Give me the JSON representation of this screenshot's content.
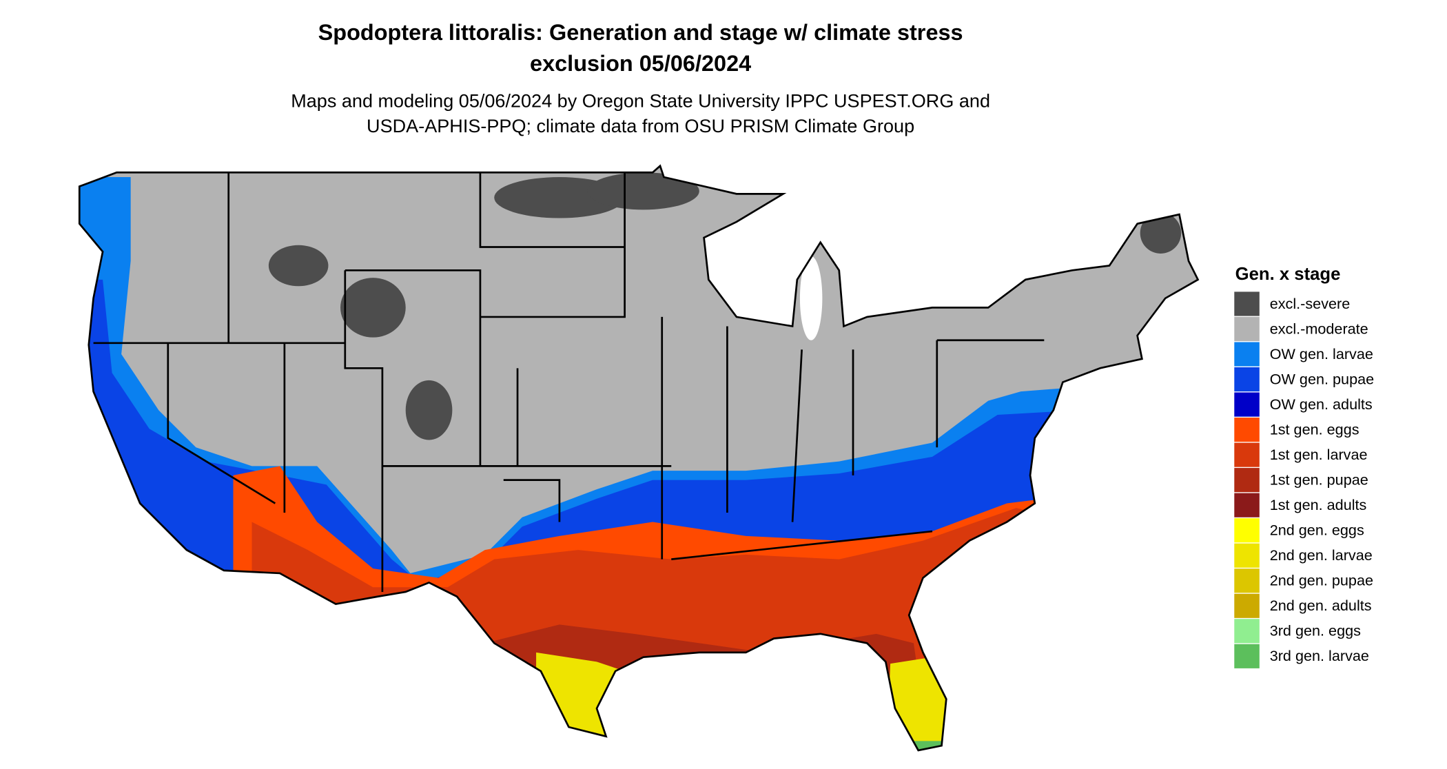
{
  "header": {
    "title": [
      "Spodoptera littoralis: Generation and stage w/ climate stress",
      "exclusion 05/06/2024"
    ],
    "subtitle": [
      "Maps and modeling 05/06/2024 by Oregon State University IPPC USPEST.ORG and",
      "USDA-APHIS-PPQ; climate data from OSU PRISM Climate Group"
    ]
  },
  "legend": {
    "title": "Gen. x stage",
    "items": [
      {
        "label": "excl.-severe",
        "color": "#4d4d4d"
      },
      {
        "label": "excl.-moderate",
        "color": "#b3b3b3"
      },
      {
        "label": "OW gen. larvae",
        "color": "#0a80f0"
      },
      {
        "label": "OW gen. pupae",
        "color": "#0a44e6"
      },
      {
        "label": "OW gen. adults",
        "color": "#0000c8"
      },
      {
        "label": "1st gen. eggs",
        "color": "#ff4a00"
      },
      {
        "label": "1st gen. larvae",
        "color": "#d9390c"
      },
      {
        "label": "1st gen. pupae",
        "color": "#b02a12"
      },
      {
        "label": "1st gen. adults",
        "color": "#8b1a1a"
      },
      {
        "label": "2nd gen. eggs",
        "color": "#ffff00"
      },
      {
        "label": "2nd gen. larvae",
        "color": "#eee400"
      },
      {
        "label": "2nd gen. pupae",
        "color": "#dcc600"
      },
      {
        "label": "2nd gen. adults",
        "color": "#ccaa00"
      },
      {
        "label": "3rd gen. eggs",
        "color": "#90ee90"
      },
      {
        "label": "3rd gen. larvae",
        "color": "#5cbf5c"
      }
    ]
  }
}
